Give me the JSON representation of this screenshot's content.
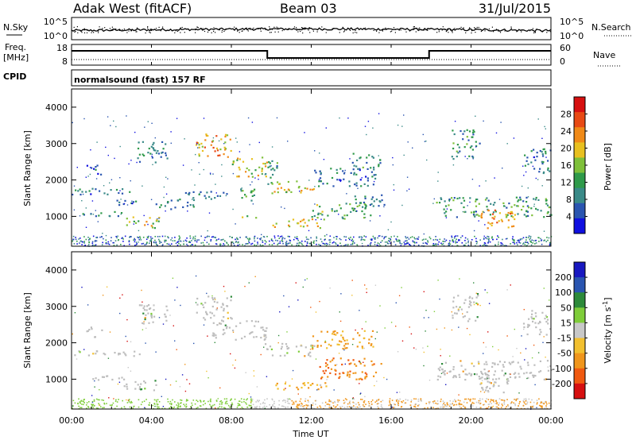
{
  "header": {
    "station": "Adak West (fitACF)",
    "beam": "Beam 03",
    "date": "31/Jul/2015"
  },
  "noise_panel": {
    "left_label": "N.Sky",
    "right_label": "N.Search",
    "ticks_left": [
      "10^5",
      "10^0"
    ],
    "ticks_right": [
      "10^5",
      "10^0"
    ]
  },
  "freq_panel": {
    "label_line1": "Freq.",
    "label_line2": "[MHz]",
    "right_label": "Nave",
    "ticks_left": [
      "18",
      "8"
    ],
    "ticks_right": [
      "60",
      "0"
    ]
  },
  "cpid": {
    "label": "CPID",
    "text": "normalsound (fast) 157 RF"
  },
  "colors": {
    "power_scale": [
      "#1010e0",
      "#2a55b0",
      "#3a8a88",
      "#2f9a4a",
      "#7fc03a",
      "#e8c020",
      "#f08a18",
      "#e84a14",
      "#d61010"
    ],
    "velocity_scale": [
      "#d61010",
      "#f05a10",
      "#f0961c",
      "#f2c030",
      "#c8c8c8",
      "#7fcd3a",
      "#2d8a3a",
      "#2a55b0",
      "#1818c0"
    ],
    "ground_scatter": "#bdbdbd"
  },
  "chart_data": [
    {
      "type": "heatmap",
      "name": "power",
      "ylabel": "Slant Range [km]",
      "yticks": [
        1000,
        2000,
        3000,
        4000
      ],
      "ylim": [
        180,
        4500
      ],
      "colorbar": {
        "label": "Power [dB]",
        "ticks": [
          4,
          8,
          12,
          16,
          20,
          24,
          28
        ],
        "range": [
          0,
          32
        ]
      },
      "echo_regions": [
        {
          "t0": 0.7,
          "t1": 1.5,
          "r0": 2150,
          "r1": 2450,
          "level": 8
        },
        {
          "t0": 0.0,
          "t1": 3.4,
          "r0": 1620,
          "r1": 1800,
          "level": 8
        },
        {
          "t0": 0.5,
          "t1": 2.6,
          "r0": 1000,
          "r1": 1150,
          "level": 9
        },
        {
          "t0": 2.2,
          "t1": 3.5,
          "r0": 1300,
          "r1": 1500,
          "level": 8
        },
        {
          "t0": 2.6,
          "t1": 4.4,
          "r0": 700,
          "r1": 1000,
          "level": 17
        },
        {
          "t0": 3.2,
          "t1": 4.8,
          "r0": 2500,
          "r1": 3100,
          "level": 9
        },
        {
          "t0": 4.2,
          "t1": 6.2,
          "r0": 1200,
          "r1": 1500,
          "level": 9
        },
        {
          "t0": 6.2,
          "t1": 8.0,
          "r0": 2650,
          "r1": 3300,
          "level": 21
        },
        {
          "t0": 8.0,
          "t1": 9.8,
          "r0": 2100,
          "r1": 2650,
          "level": 18
        },
        {
          "t0": 5.5,
          "t1": 8.5,
          "r0": 1500,
          "r1": 1700,
          "level": 8
        },
        {
          "t0": 8.2,
          "t1": 9.3,
          "r0": 1450,
          "r1": 1800,
          "level": 12
        },
        {
          "t0": 8.5,
          "t1": 9.2,
          "r0": 900,
          "r1": 1050,
          "level": 15
        },
        {
          "t0": 9.6,
          "t1": 10.4,
          "r0": 1900,
          "r1": 2550,
          "level": 10
        },
        {
          "t0": 10.0,
          "t1": 12.2,
          "r0": 1650,
          "r1": 2000,
          "level": 19
        },
        {
          "t0": 12.0,
          "t1": 15.2,
          "r0": 1850,
          "r1": 2350,
          "level": 8
        },
        {
          "t0": 14.0,
          "t1": 15.5,
          "r0": 2350,
          "r1": 2750,
          "level": 10
        },
        {
          "t0": 10.0,
          "t1": 12.8,
          "r0": 700,
          "r1": 950,
          "level": 20
        },
        {
          "t0": 12.0,
          "t1": 15.0,
          "r0": 950,
          "r1": 1400,
          "level": 13
        },
        {
          "t0": 14.0,
          "t1": 15.8,
          "r0": 1300,
          "r1": 1650,
          "level": 8
        },
        {
          "t0": 19.0,
          "t1": 20.4,
          "r0": 2600,
          "r1": 3400,
          "level": 10
        },
        {
          "t0": 18.2,
          "t1": 24.0,
          "r0": 1000,
          "r1": 1550,
          "level": 11
        },
        {
          "t0": 20.3,
          "t1": 22.2,
          "r0": 650,
          "r1": 1200,
          "level": 23
        },
        {
          "t0": 22.6,
          "t1": 24.0,
          "r0": 2200,
          "r1": 2900,
          "level": 8
        }
      ]
    },
    {
      "type": "heatmap",
      "name": "velocity",
      "ylabel": "Slant Range [km]",
      "yticks": [
        1000,
        2000,
        3000,
        4000
      ],
      "ylim": [
        180,
        4500
      ],
      "colorbar": {
        "label": "Velocity [m s",
        "label_sup": "-1",
        "label_end": "]",
        "ticks": [
          200,
          100,
          50,
          15,
          -15,
          -50,
          -100,
          -200
        ]
      },
      "echo_regions": [
        {
          "t0": 0.7,
          "t1": 1.5,
          "r0": 2150,
          "r1": 2450,
          "v": 0
        },
        {
          "t0": 0.0,
          "t1": 3.4,
          "r0": 1620,
          "r1": 1800,
          "v": 0
        },
        {
          "t0": 0.5,
          "t1": 2.6,
          "r0": 1000,
          "r1": 1150,
          "v": 0
        },
        {
          "t0": 2.6,
          "t1": 4.4,
          "r0": 700,
          "r1": 1000,
          "v": 0
        },
        {
          "t0": 3.2,
          "t1": 4.8,
          "r0": 2500,
          "r1": 3100,
          "v": 0
        },
        {
          "t0": 6.2,
          "t1": 8.0,
          "r0": 2650,
          "r1": 3300,
          "v": 0
        },
        {
          "t0": 7.0,
          "t1": 9.8,
          "r0": 2100,
          "r1": 2650,
          "v": 0
        },
        {
          "t0": 9.6,
          "t1": 12.2,
          "r0": 1650,
          "r1": 2000,
          "v": 0
        },
        {
          "t0": 12.0,
          "t1": 15.2,
          "r0": 1850,
          "r1": 2350,
          "v": -60
        },
        {
          "t0": 10.0,
          "t1": 12.8,
          "r0": 700,
          "r1": 950,
          "v": -40
        },
        {
          "t0": 12.4,
          "t1": 15.5,
          "r0": 1000,
          "r1": 1600,
          "v": -90
        },
        {
          "t0": 19.0,
          "t1": 20.4,
          "r0": 2600,
          "r1": 3400,
          "v": 0
        },
        {
          "t0": 18.2,
          "t1": 24.0,
          "r0": 1000,
          "r1": 1550,
          "v": 0
        },
        {
          "t0": 20.3,
          "t1": 22.2,
          "r0": 650,
          "r1": 1200,
          "v": 0
        },
        {
          "t0": 22.6,
          "t1": 24.0,
          "r0": 2200,
          "r1": 2900,
          "v": 0
        }
      ]
    }
  ],
  "time_axis": {
    "label": "Time UT",
    "ticks": [
      "00:00",
      "04:00",
      "08:00",
      "12:00",
      "16:00",
      "20:00",
      "00:00"
    ],
    "range_hours": [
      0,
      24
    ]
  },
  "freq_trace": {
    "segments": [
      {
        "t0": 0.0,
        "t1": 9.8,
        "level": "high"
      },
      {
        "t0": 9.8,
        "t1": 17.9,
        "level": "low"
      },
      {
        "t0": 17.9,
        "t1": 24.0,
        "level": "high"
      }
    ]
  }
}
